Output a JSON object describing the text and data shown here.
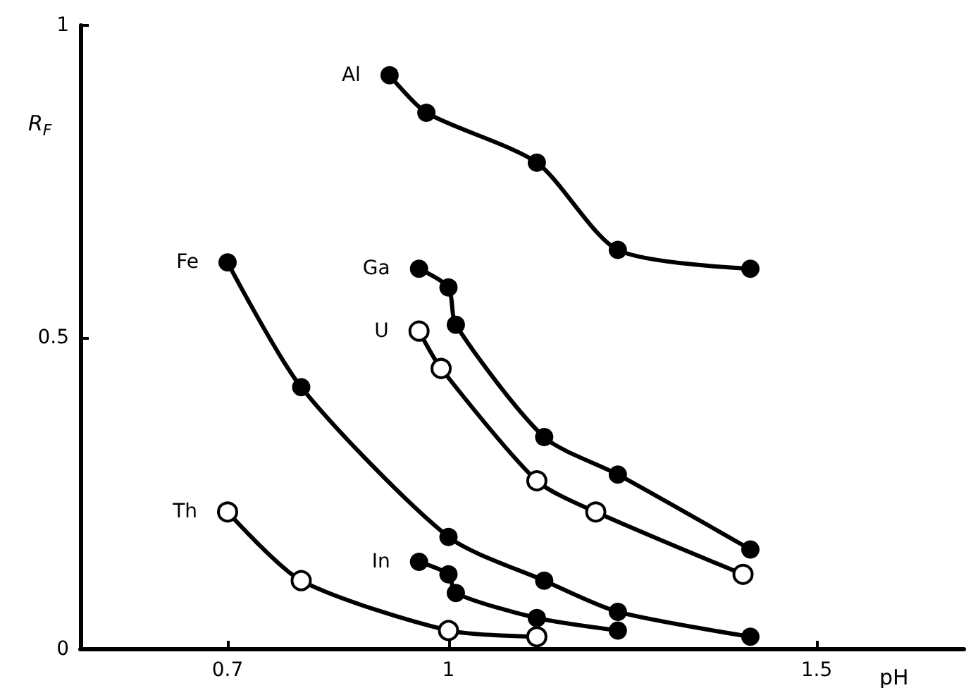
{
  "chart_data": {
    "type": "line",
    "xlabel": "pH",
    "ylabel": "R$_{F}$",
    "xlim": [
      0.5,
      1.7
    ],
    "ylim": [
      0,
      1
    ],
    "xticks": [
      0.7,
      1,
      1.5
    ],
    "yticks": [
      0,
      0.5,
      1
    ],
    "grid": false,
    "legend": false,
    "marker": "circle",
    "line_style": "solid",
    "series": [
      {
        "name": "Al",
        "color": "#000000",
        "x": [
          0.92,
          0.97,
          1.12,
          1.23,
          1.41
        ],
        "values": [
          0.92,
          0.86,
          0.78,
          0.64,
          0.61
        ]
      },
      {
        "name": "Ga",
        "color": "#000000",
        "x": [
          0.96,
          1.0,
          1.01,
          1.13,
          1.23,
          1.41
        ],
        "values": [
          0.61,
          0.58,
          0.52,
          0.34,
          0.28,
          0.16
        ]
      },
      {
        "name": "U",
        "color": "#000000",
        "marker": "open_circle",
        "x": [
          0.96,
          0.99,
          1.12,
          1.2,
          1.4
        ],
        "values": [
          0.51,
          0.45,
          0.27,
          0.22,
          0.12
        ]
      },
      {
        "name": "Fe",
        "color": "#000000",
        "x": [
          0.7,
          0.8,
          1.0,
          1.13,
          1.23,
          1.41
        ],
        "values": [
          0.62,
          0.42,
          0.18,
          0.11,
          0.06,
          0.02
        ]
      },
      {
        "name": "In",
        "color": "#000000",
        "x": [
          0.96,
          1.0,
          1.01,
          1.12,
          1.23
        ],
        "values": [
          0.14,
          0.12,
          0.09,
          0.05,
          0.03
        ]
      },
      {
        "name": "Th",
        "color": "#000000",
        "marker": "open_circle",
        "x": [
          0.7,
          0.8,
          1.0,
          1.12
        ],
        "values": [
          0.22,
          0.11,
          0.03,
          0.02
        ]
      }
    ]
  }
}
